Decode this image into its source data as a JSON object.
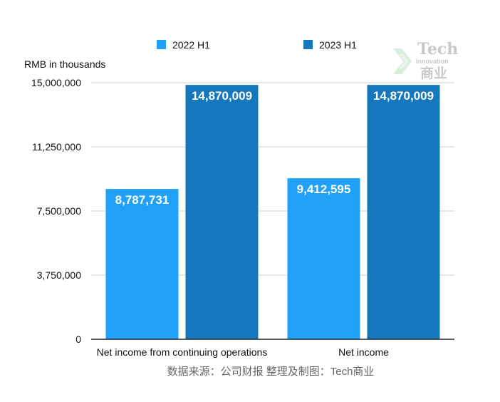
{
  "chart_data": {
    "type": "bar",
    "categories": [
      "Net income from continuing operations",
      "Net income"
    ],
    "series": [
      {
        "name": "2022 H1",
        "color": "#21a0f8",
        "values": [
          8787731,
          9412595
        ]
      },
      {
        "name": "2023 H1",
        "color": "#1678bc",
        "values": [
          14870009,
          14870009
        ]
      }
    ],
    "data_labels": {
      "2022 H1": [
        "8,787,731",
        "9,412,595"
      ],
      "2023 H1": [
        "14,870,009",
        "14,870,009"
      ]
    },
    "ylabel": "RMB in thousands",
    "ylim": [
      0,
      15000000
    ],
    "yticks": [
      0,
      3750000,
      7500000,
      11250000,
      15000000
    ],
    "ytick_labels": [
      "0",
      "3,750,000",
      "7,500,000",
      "11,250,000",
      "15,000,000"
    ],
    "grid": true,
    "legend_position": "top"
  },
  "source_note": "数据来源：公司财报 整理及制图：Tech商业",
  "watermark": {
    "line1": "Tech",
    "line2": "Innovation",
    "line3": "商业",
    "icon": "chevron-arrow-icon",
    "color": "#c9c9c9"
  }
}
